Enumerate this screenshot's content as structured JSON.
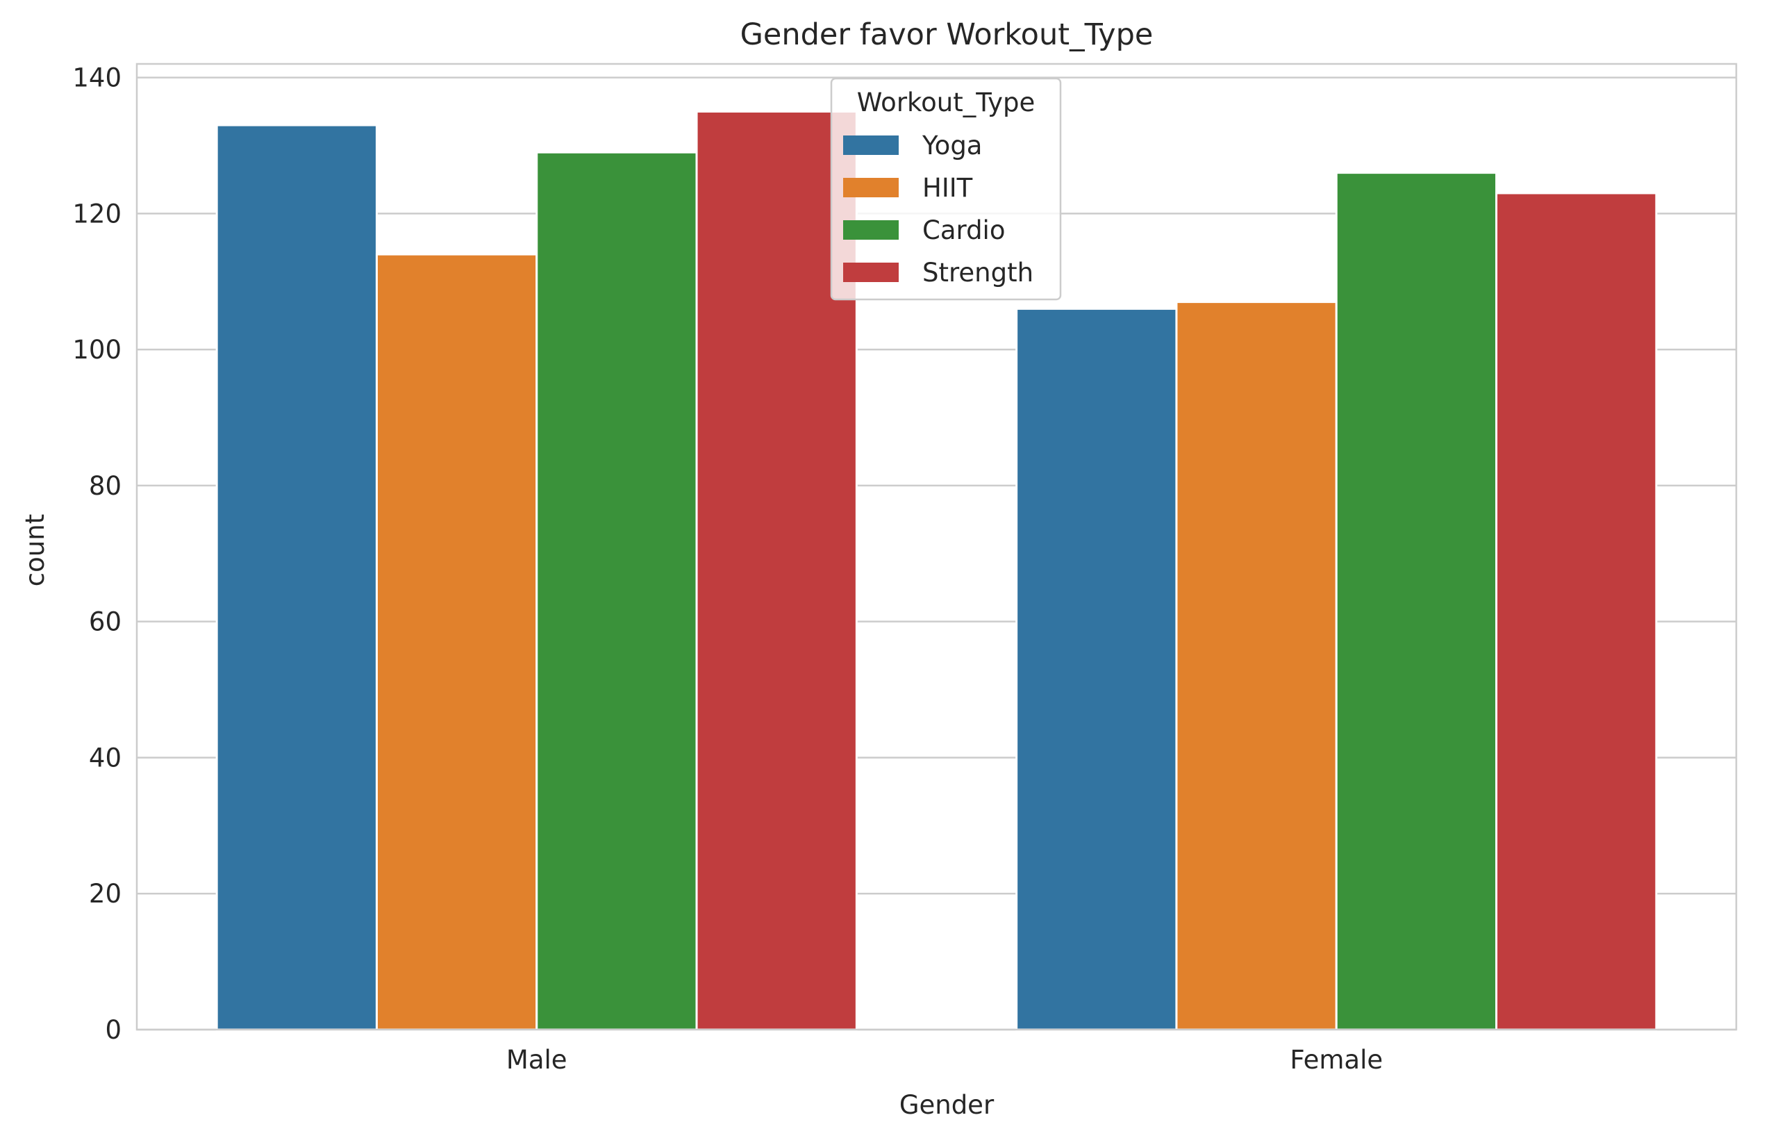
{
  "chart_data": {
    "type": "bar",
    "title": "Gender favor Workout_Type",
    "xlabel": "Gender",
    "ylabel": "count",
    "categories": [
      "Male",
      "Female"
    ],
    "series": [
      {
        "name": "Yoga",
        "color": "#3274a1",
        "values": [
          133,
          106
        ]
      },
      {
        "name": "HIIT",
        "color": "#e1812c",
        "values": [
          114,
          107
        ]
      },
      {
        "name": "Cardio",
        "color": "#3a923a",
        "values": [
          129,
          126
        ]
      },
      {
        "name": "Strength",
        "color": "#c03d3e",
        "values": [
          135,
          123
        ]
      }
    ],
    "ylim": [
      0,
      142
    ],
    "yticks": [
      0,
      20,
      40,
      60,
      80,
      100,
      120,
      140
    ],
    "grid": true,
    "legend": {
      "title": "Workout_Type",
      "placement": "upper center"
    }
  }
}
